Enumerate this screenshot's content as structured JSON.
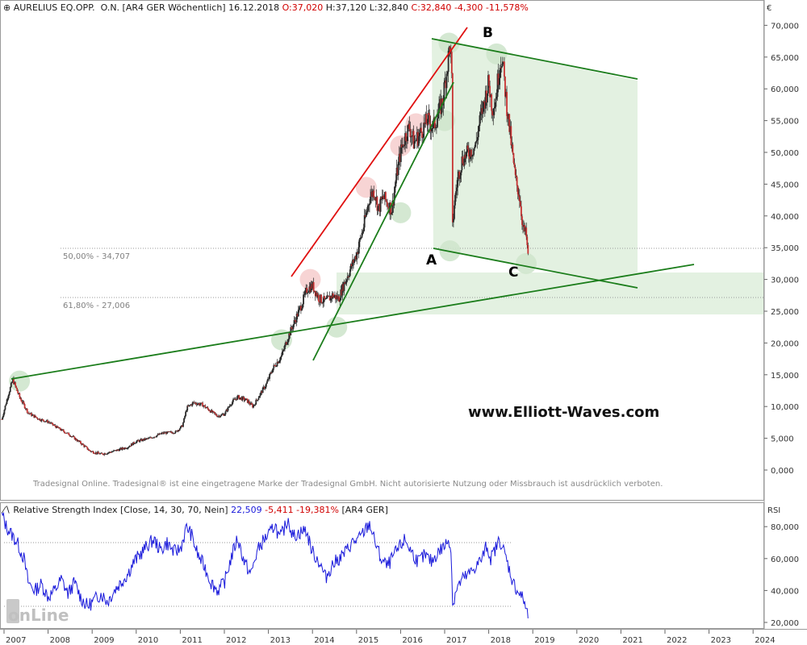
{
  "price_header": {
    "symbol": "AURELIUS EQ.OPP.",
    "exchange": "O.N. [AR4 GER",
    "period": "Wöchentlich]",
    "date": "16.12.2018",
    "open": "O:37,020",
    "high": "H:37,120",
    "low": "L:32,840",
    "close": "C:32,840",
    "change": "-4,300",
    "change_pct": "-11,578%"
  },
  "rsi_header": {
    "title": "Relative Strength Index [Close, 14, 30, 70, Nein]",
    "value": "22,509",
    "change": "-5,411",
    "change_pct": "-19,381%",
    "instrument": "[AR4 GER]"
  },
  "currency_label": "€",
  "rsi_axis_label": "RSI",
  "watermark_text": "www.Elliott-Waves.com",
  "disclaimer": "Tradesignal Online. Tradesignal® ist eine eingetragene Marke der Tradesignal GmbH. Nicht autorisierte Nutzung oder Missbrauch ist ausdrücklich verboten.",
  "logo_text": "onLine",
  "fib_labels": {
    "fib50": "50,00% - 34,707",
    "fib618": "61,80% - 27,006"
  },
  "wave_labels": {
    "A": "A",
    "B": "B",
    "C": "C"
  },
  "colors": {
    "candle_up": "#2a2a2a",
    "candle_down": "#c83232",
    "trend_green": "#1b7d1b",
    "trend_red": "#e01010",
    "rsi_line": "#1a1adb",
    "zone_fill": "#e3f1e1"
  },
  "chart_data": [
    {
      "type": "candlestick",
      "title": "AURELIUS EQ.OPP. O.N. [AR4 GER Wöchentlich]",
      "ylabel": "€",
      "ylim": [
        -3000,
        71000
      ],
      "yticks": [
        "0,000",
        "5,000",
        "10,000",
        "15,000",
        "20,000",
        "25,000",
        "30,000",
        "35,000",
        "40,000",
        "45,000",
        "50,000",
        "55,000",
        "60,000",
        "65,000",
        "70,000"
      ],
      "xticks": [
        "2007",
        "2008",
        "2009",
        "2010",
        "2011",
        "2012",
        "2013",
        "2014",
        "2015",
        "2016",
        "2017",
        "2018",
        "2019",
        "2020",
        "2021",
        "2022",
        "2023",
        "2024"
      ],
      "grid": false,
      "series": [
        {
          "name": "AURELIUS EQ.OPP.",
          "values": [
            [
              2006.95,
              8.0
            ],
            [
              2007.1,
              12.0
            ],
            [
              2007.2,
              14.2
            ],
            [
              2007.35,
              11.5
            ],
            [
              2007.55,
              9.0
            ],
            [
              2007.8,
              8.0
            ],
            [
              2008.0,
              7.6
            ],
            [
              2008.25,
              6.5
            ],
            [
              2008.5,
              5.5
            ],
            [
              2008.75,
              4.2
            ],
            [
              2008.95,
              3.0
            ],
            [
              2009.2,
              2.5
            ],
            [
              2009.4,
              2.8
            ],
            [
              2009.6,
              3.2
            ],
            [
              2009.8,
              3.6
            ],
            [
              2010.0,
              4.5
            ],
            [
              2010.3,
              5.0
            ],
            [
              2010.6,
              5.8
            ],
            [
              2010.9,
              6.0
            ],
            [
              2011.05,
              7.0
            ],
            [
              2011.15,
              9.8
            ],
            [
              2011.3,
              10.6
            ],
            [
              2011.5,
              10.3
            ],
            [
              2011.7,
              9.2
            ],
            [
              2011.85,
              8.5
            ],
            [
              2012.0,
              8.8
            ],
            [
              2012.15,
              10.5
            ],
            [
              2012.3,
              11.5
            ],
            [
              2012.5,
              11.0
            ],
            [
              2012.65,
              10.0
            ],
            [
              2012.8,
              11.8
            ],
            [
              2012.95,
              13.5
            ],
            [
              2013.1,
              16.0
            ],
            [
              2013.3,
              18.0
            ],
            [
              2013.45,
              21.0
            ],
            [
              2013.6,
              23.5
            ],
            [
              2013.75,
              26.0
            ],
            [
              2013.88,
              28.5
            ],
            [
              2014.0,
              29.0
            ],
            [
              2014.15,
              27.0
            ],
            [
              2014.3,
              26.5
            ],
            [
              2014.45,
              27.5
            ],
            [
              2014.6,
              27.0
            ],
            [
              2014.7,
              29.0
            ],
            [
              2014.85,
              31.5
            ],
            [
              2015.0,
              34.0
            ],
            [
              2015.15,
              38.0
            ],
            [
              2015.3,
              43.0
            ],
            [
              2015.4,
              44.0
            ],
            [
              2015.5,
              41.0
            ],
            [
              2015.6,
              43.0
            ],
            [
              2015.7,
              42.0
            ],
            [
              2015.8,
              41.0
            ],
            [
              2015.9,
              46.0
            ],
            [
              2016.0,
              50.0
            ],
            [
              2016.1,
              52.5
            ],
            [
              2016.2,
              54.0
            ],
            [
              2016.3,
              51.5
            ],
            [
              2016.45,
              53.0
            ],
            [
              2016.6,
              55.0
            ],
            [
              2016.75,
              54.0
            ],
            [
              2016.85,
              56.0
            ],
            [
              2016.95,
              58.0
            ],
            [
              2017.05,
              63.0
            ],
            [
              2017.12,
              67.0
            ],
            [
              2017.16,
              63.0
            ],
            [
              2017.18,
              38.0
            ],
            [
              2017.22,
              42.0
            ],
            [
              2017.3,
              46.0
            ],
            [
              2017.4,
              49.0
            ],
            [
              2017.55,
              50.0
            ],
            [
              2017.7,
              51.0
            ],
            [
              2017.8,
              55.0
            ],
            [
              2017.9,
              58.0
            ],
            [
              2018.0,
              61.0
            ],
            [
              2018.08,
              57.0
            ],
            [
              2018.15,
              58.0
            ],
            [
              2018.25,
              64.0
            ],
            [
              2018.3,
              65.0
            ],
            [
              2018.4,
              58.0
            ],
            [
              2018.5,
              52.0
            ],
            [
              2018.6,
              46.0
            ],
            [
              2018.7,
              43.0
            ],
            [
              2018.78,
              38.0
            ],
            [
              2018.85,
              37.0
            ],
            [
              2018.9,
              32.8
            ]
          ]
        }
      ],
      "annotations": [
        "A",
        "B",
        "C",
        "50,00% - 34,707",
        "61,80% - 27,006",
        "www.Elliott-Waves.com"
      ]
    },
    {
      "type": "line",
      "title": "Relative Strength Index [Close, 14, 30, 70, Nein]",
      "ylabel": "RSI",
      "ylim": [
        17,
        90
      ],
      "yticks": [
        "20,000",
        "40,000",
        "60,000",
        "80,000"
      ],
      "series": [
        {
          "name": "Relative Strength Index",
          "values": [
            [
              2006.95,
              88
            ],
            [
              2007.05,
              80
            ],
            [
              2007.15,
              76
            ],
            [
              2007.3,
              70
            ],
            [
              2007.45,
              60
            ],
            [
              2007.55,
              45
            ],
            [
              2007.7,
              40
            ],
            [
              2007.85,
              44
            ],
            [
              2008.0,
              36
            ],
            [
              2008.15,
              40
            ],
            [
              2008.3,
              47
            ],
            [
              2008.45,
              38
            ],
            [
              2008.6,
              45
            ],
            [
              2008.75,
              35
            ],
            [
              2008.9,
              30
            ],
            [
              2009.05,
              34
            ],
            [
              2009.2,
              38
            ],
            [
              2009.35,
              33
            ],
            [
              2009.5,
              40
            ],
            [
              2009.65,
              45
            ],
            [
              2009.8,
              50
            ],
            [
              2009.95,
              58
            ],
            [
              2010.1,
              63
            ],
            [
              2010.25,
              68
            ],
            [
              2010.4,
              72
            ],
            [
              2010.55,
              65
            ],
            [
              2010.7,
              70
            ],
            [
              2010.85,
              64
            ],
            [
              2011.0,
              66
            ],
            [
              2011.15,
              80
            ],
            [
              2011.25,
              75
            ],
            [
              2011.4,
              62
            ],
            [
              2011.55,
              55
            ],
            [
              2011.7,
              45
            ],
            [
              2011.85,
              40
            ],
            [
              2012.0,
              45
            ],
            [
              2012.15,
              60
            ],
            [
              2012.3,
              73
            ],
            [
              2012.45,
              58
            ],
            [
              2012.6,
              50
            ],
            [
              2012.75,
              65
            ],
            [
              2012.9,
              72
            ],
            [
              2013.05,
              76
            ],
            [
              2013.15,
              82
            ],
            [
              2013.25,
              72
            ],
            [
              2013.35,
              78
            ],
            [
              2013.45,
              85
            ],
            [
              2013.55,
              74
            ],
            [
              2013.7,
              76
            ],
            [
              2013.85,
              78
            ],
            [
              2014.0,
              64
            ],
            [
              2014.15,
              58
            ],
            [
              2014.3,
              48
            ],
            [
              2014.45,
              56
            ],
            [
              2014.6,
              60
            ],
            [
              2014.75,
              64
            ],
            [
              2014.9,
              70
            ],
            [
              2015.05,
              72
            ],
            [
              2015.2,
              78
            ],
            [
              2015.3,
              82
            ],
            [
              2015.4,
              72
            ],
            [
              2015.55,
              60
            ],
            [
              2015.7,
              55
            ],
            [
              2015.85,
              62
            ],
            [
              2016.0,
              68
            ],
            [
              2016.1,
              72
            ],
            [
              2016.25,
              64
            ],
            [
              2016.4,
              58
            ],
            [
              2016.55,
              62
            ],
            [
              2016.7,
              58
            ],
            [
              2016.85,
              64
            ],
            [
              2017.0,
              68
            ],
            [
              2017.1,
              72
            ],
            [
              2017.15,
              65
            ],
            [
              2017.18,
              30
            ],
            [
              2017.25,
              40
            ],
            [
              2017.4,
              47
            ],
            [
              2017.55,
              50
            ],
            [
              2017.7,
              55
            ],
            [
              2017.85,
              60
            ],
            [
              2017.95,
              68
            ],
            [
              2018.05,
              60
            ],
            [
              2018.15,
              66
            ],
            [
              2018.25,
              72
            ],
            [
              2018.35,
              64
            ],
            [
              2018.45,
              55
            ],
            [
              2018.55,
              45
            ],
            [
              2018.65,
              40
            ],
            [
              2018.75,
              36
            ],
            [
              2018.82,
              32
            ],
            [
              2018.9,
              22.5
            ]
          ]
        }
      ],
      "reference_lines": [
        30,
        70
      ]
    }
  ]
}
